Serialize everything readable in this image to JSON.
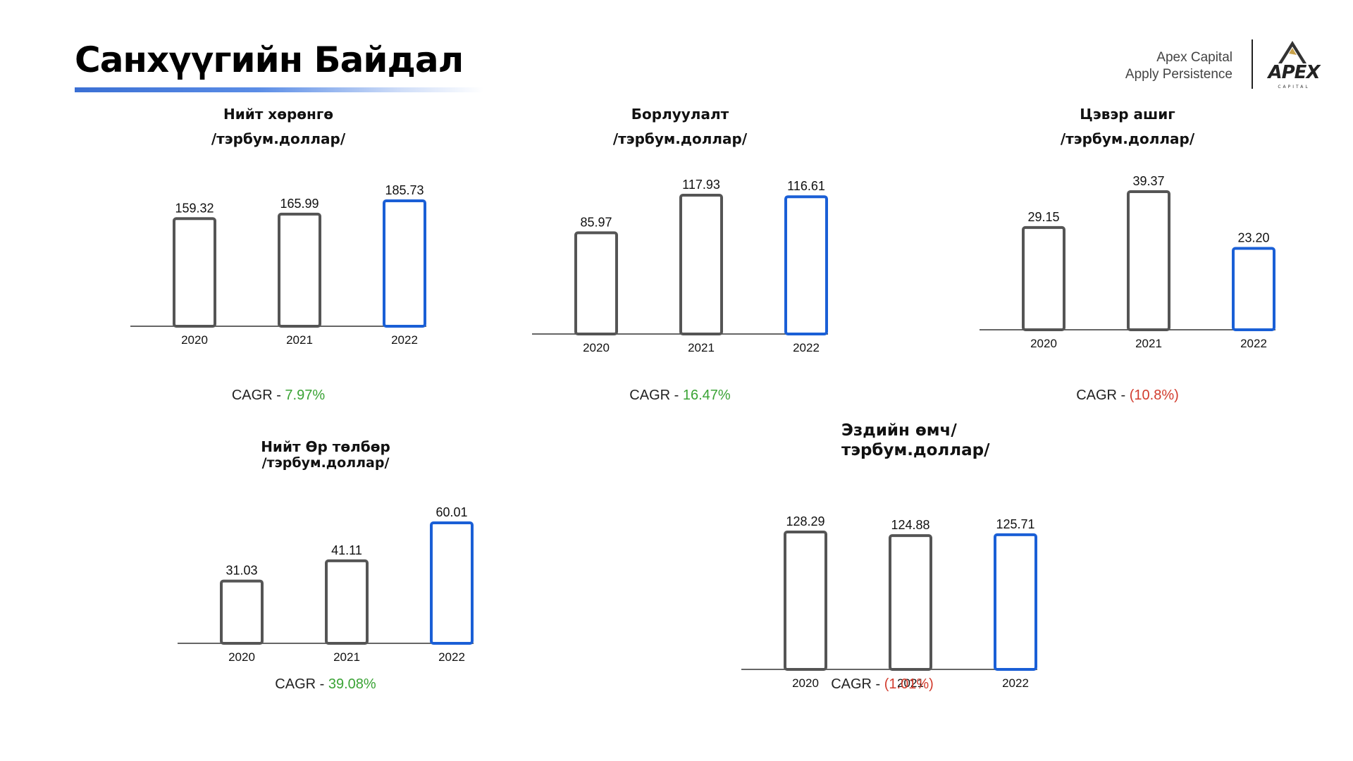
{
  "header": {
    "title": "Санхүүгийн Байдал",
    "brand_line1": "Apex Capital",
    "brand_line2": "Apply Persistence",
    "logo_text": "APEX",
    "logo_subtext": "CAPITAL"
  },
  "colors": {
    "bar_normal": "#555555",
    "bar_highlight": "#1a5fd6",
    "cagr_positive": "#3aa335",
    "cagr_negative": "#d23c2e",
    "title_underline": "#3a6fd4"
  },
  "chart_data": [
    {
      "type": "bar",
      "title": "Нийт хөрөнгө",
      "subtitle": "/тэрбум.доллар/",
      "categories": [
        "2020",
        "2021",
        "2022"
      ],
      "values": [
        159.32,
        165.99,
        185.73
      ],
      "labels": [
        "159.32",
        "165.99",
        "185.73"
      ],
      "highlight_last": true,
      "cagr_label": "CAGR - ",
      "cagr_value": "7.97%",
      "cagr_sign": "positive"
    },
    {
      "type": "bar",
      "title": "Борлуулалт",
      "subtitle": "/тэрбум.доллар/",
      "categories": [
        "2020",
        "2021",
        "2022"
      ],
      "values": [
        85.97,
        117.93,
        116.61
      ],
      "labels": [
        "85.97",
        "117.93",
        "116.61"
      ],
      "highlight_last": true,
      "cagr_label": "CAGR - ",
      "cagr_value": "16.47%",
      "cagr_sign": "positive"
    },
    {
      "type": "bar",
      "title": "Цэвэр ашиг",
      "subtitle": "/тэрбум.доллар/",
      "categories": [
        "2020",
        "2021",
        "2022"
      ],
      "values": [
        29.15,
        39.37,
        23.2
      ],
      "labels": [
        "29.15",
        "39.37",
        "23.20"
      ],
      "highlight_last": true,
      "cagr_label": "CAGR - ",
      "cagr_value": "(10.8%)",
      "cagr_sign": "negative"
    },
    {
      "type": "bar",
      "title": "Нийт  Өр төлбөр",
      "subtitle": "/тэрбум.доллар/",
      "categories": [
        "2020",
        "2021",
        "2022"
      ],
      "values": [
        31.03,
        41.11,
        60.01
      ],
      "labels": [
        "31.03",
        "41.11",
        "60.01"
      ],
      "highlight_last": true,
      "cagr_label": "CAGR - ",
      "cagr_value": "39.08%",
      "cagr_sign": "positive"
    },
    {
      "type": "bar",
      "title": "Эздийн өмч/",
      "subtitle": "тэрбум.доллар/",
      "categories": [
        "2020",
        "2021",
        "2022"
      ],
      "values": [
        128.29,
        124.88,
        125.71
      ],
      "labels": [
        "128.29",
        "124.88",
        "125.71"
      ],
      "highlight_last": true,
      "cagr_label": "CAGR - ",
      "cagr_value": "(1.01%)",
      "cagr_sign": "negative"
    }
  ]
}
